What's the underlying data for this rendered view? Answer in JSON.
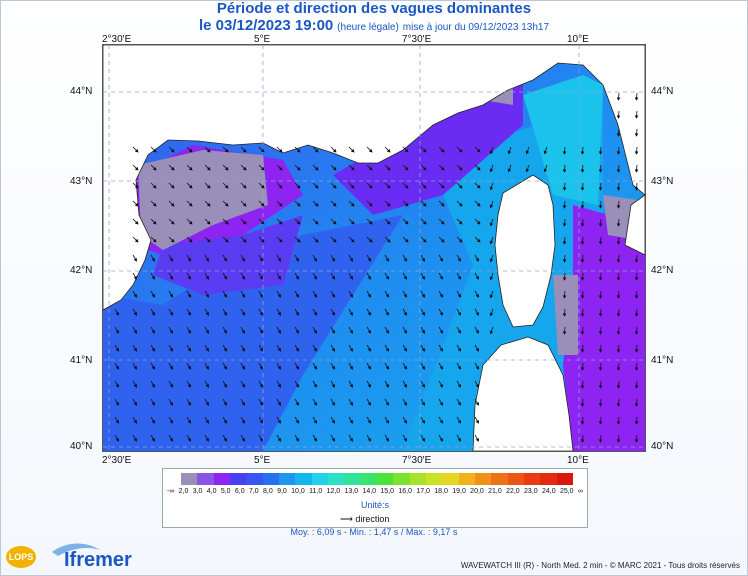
{
  "title": {
    "main": "Période et direction des vagues dominantes",
    "date": "le 03/12/2023 19:00",
    "legal": "(heure légale)",
    "update": "mise à jour du 09/12/2023 13h17"
  },
  "axes": {
    "lon_top": [
      "2°30'E",
      "5°E",
      "7°30'E",
      "10°E"
    ],
    "lon_bottom": [
      "2°30'E",
      "5°E",
      "7°30'E",
      "10°E"
    ],
    "lat_left": [
      "44°N",
      "43°N",
      "42°N",
      "41°N",
      "40°N"
    ],
    "lat_right": [
      "44°N",
      "43°N",
      "42°N",
      "41°N",
      "40°N"
    ]
  },
  "legend": {
    "ticks": [
      "-∞",
      "2,0",
      "3,0",
      "4,0",
      "5,0",
      "6,0",
      "7,0",
      "8,0",
      "9,0",
      "10,0",
      "11,0",
      "12,0",
      "13,0",
      "14,0",
      "15,0",
      "16,0",
      "17,0",
      "18,0",
      "19,0",
      "20,0",
      "21,0",
      "22,0",
      "23,0",
      "24,0",
      "25,0",
      "∞"
    ],
    "colors": [
      "#9a8fb8",
      "#8a55e6",
      "#8d24f2",
      "#4a3ff2",
      "#3a56f0",
      "#2672ee",
      "#1e96ee",
      "#13b6ef",
      "#1fd2e8",
      "#2ee0c6",
      "#33e39a",
      "#39e46a",
      "#4ee33b",
      "#7be22d",
      "#a6e227",
      "#c9e224",
      "#e5d61f",
      "#f0b21a",
      "#f19218",
      "#ef7116",
      "#ec5514",
      "#e93c12",
      "#e52a10",
      "#d9160f"
    ],
    "unit": "Unité:s",
    "direction": "direction"
  },
  "stats": "Moy. : 6,09 s   -   Min. : 1,47 s / Max. : 9,17 s",
  "credit": "WAVEWATCH III (R) - North Med. 2 min - © MARC 2021 - Tous droits réservés",
  "logos": {
    "lops": "LOPS",
    "ifremer": "Ifremer"
  }
}
